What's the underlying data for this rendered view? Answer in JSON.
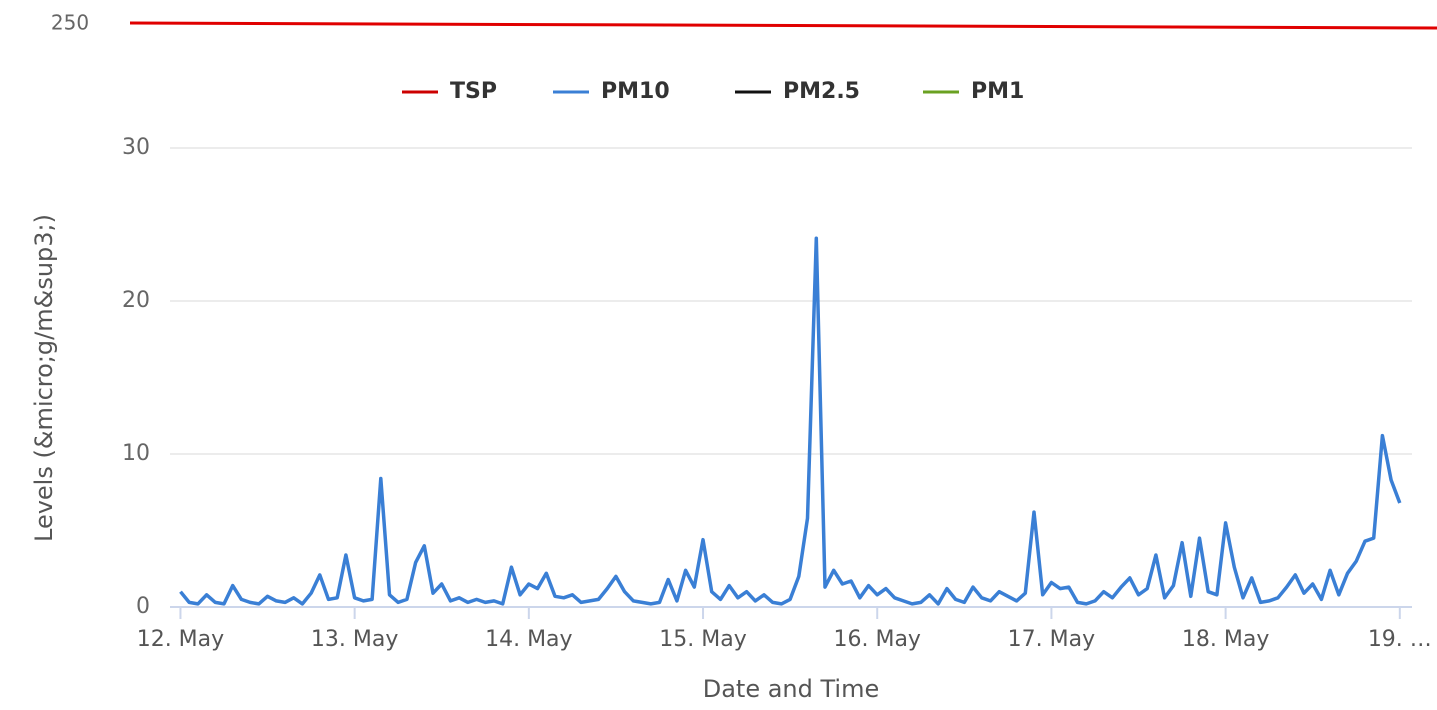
{
  "chart_data": {
    "type": "line",
    "annotation": "250",
    "ylabel": "Levels (&micro;g/m&sup3;)",
    "xlabel": "Date and Time",
    "x": [
      12,
      12.05,
      12.1,
      12.15,
      12.2,
      12.25,
      12.3,
      12.35,
      12.4,
      12.45,
      12.5,
      12.55,
      12.6,
      12.65,
      12.7,
      12.75,
      12.8,
      12.85,
      12.9,
      12.95,
      13,
      13.05,
      13.1,
      13.15,
      13.2,
      13.25,
      13.3,
      13.35,
      13.4,
      13.45,
      13.5,
      13.55,
      13.6,
      13.65,
      13.7,
      13.75,
      13.8,
      13.85,
      13.9,
      13.95,
      14,
      14.05,
      14.1,
      14.15,
      14.2,
      14.25,
      14.3,
      14.35,
      14.4,
      14.45,
      14.5,
      14.55,
      14.6,
      14.65,
      14.7,
      14.75,
      14.8,
      14.85,
      14.9,
      14.95,
      15,
      15.05,
      15.1,
      15.15,
      15.2,
      15.25,
      15.3,
      15.35,
      15.4,
      15.45,
      15.5,
      15.55,
      15.6,
      15.65,
      15.7,
      15.75,
      15.8,
      15.85,
      15.9,
      15.95,
      16,
      16.05,
      16.1,
      16.15,
      16.2,
      16.25,
      16.3,
      16.35,
      16.4,
      16.45,
      16.5,
      16.55,
      16.6,
      16.65,
      16.7,
      16.75,
      16.8,
      16.85,
      16.9,
      16.95,
      17,
      17.05,
      17.1,
      17.15,
      17.2,
      17.25,
      17.3,
      17.35,
      17.4,
      17.45,
      17.5,
      17.55,
      17.6,
      17.65,
      17.7,
      17.75,
      17.8,
      17.85,
      17.9,
      17.95,
      18,
      18.05,
      18.1,
      18.15,
      18.2,
      18.25,
      18.3,
      18.35,
      18.4,
      18.45,
      18.5,
      18.55,
      18.6,
      18.65,
      18.7,
      18.75,
      18.8,
      18.85,
      18.9,
      18.95,
      19
    ],
    "series": [
      {
        "name": "TSP",
        "color": "#cc0000"
      },
      {
        "name": "PM10",
        "color": "#3a7fd5",
        "values": [
          1.0,
          0.3,
          0.2,
          0.8,
          0.3,
          0.2,
          1.4,
          0.5,
          0.3,
          0.2,
          0.7,
          0.4,
          0.3,
          0.6,
          0.2,
          0.9,
          2.1,
          0.5,
          0.6,
          3.4,
          0.6,
          0.4,
          0.5,
          8.4,
          0.8,
          0.3,
          0.5,
          2.9,
          4.0,
          0.9,
          1.5,
          0.4,
          0.6,
          0.3,
          0.5,
          0.3,
          0.4,
          0.2,
          2.6,
          0.8,
          1.5,
          1.2,
          2.2,
          0.7,
          0.6,
          0.8,
          0.3,
          0.4,
          0.5,
          1.2,
          2.0,
          1.0,
          0.4,
          0.3,
          0.2,
          0.3,
          1.8,
          0.4,
          2.4,
          1.3,
          4.4,
          1.0,
          0.5,
          1.4,
          0.6,
          1.0,
          0.4,
          0.8,
          0.3,
          0.2,
          0.5,
          2.0,
          5.8,
          24.1,
          1.3,
          2.4,
          1.5,
          1.7,
          0.6,
          1.4,
          0.8,
          1.2,
          0.6,
          0.4,
          0.2,
          0.3,
          0.8,
          0.2,
          1.2,
          0.5,
          0.3,
          1.3,
          0.6,
          0.4,
          1.0,
          0.7,
          0.4,
          0.9,
          6.2,
          0.8,
          1.6,
          1.2,
          1.3,
          0.3,
          0.2,
          0.4,
          1.0,
          0.6,
          1.3,
          1.9,
          0.8,
          1.2,
          3.4,
          0.6,
          1.4,
          4.2,
          0.7,
          4.5,
          1.0,
          0.8,
          5.5,
          2.6,
          0.6,
          1.9,
          0.3,
          0.4,
          0.6,
          1.3,
          2.1,
          0.9,
          1.5,
          0.5,
          2.4,
          0.8,
          2.2,
          3.0,
          4.3,
          4.5,
          11.2,
          8.3,
          6.8
        ]
      },
      {
        "name": "PM2.5",
        "color": "#111111"
      },
      {
        "name": "PM1",
        "color": "#6aa121"
      }
    ],
    "xlim": [
      11.94,
      19.07
    ],
    "xticks": [
      {
        "value": 12,
        "label": "12. May"
      },
      {
        "value": 13,
        "label": "13. May"
      },
      {
        "value": 14,
        "label": "14. May"
      },
      {
        "value": 15,
        "label": "15. May"
      },
      {
        "value": 16,
        "label": "16. May"
      },
      {
        "value": 17,
        "label": "17. May"
      },
      {
        "value": 18,
        "label": "18. May"
      },
      {
        "value": 19,
        "label": "19. …"
      }
    ],
    "ylim": [
      0,
      30
    ],
    "yticks": [
      0,
      10,
      20,
      30
    ],
    "grid": true
  }
}
